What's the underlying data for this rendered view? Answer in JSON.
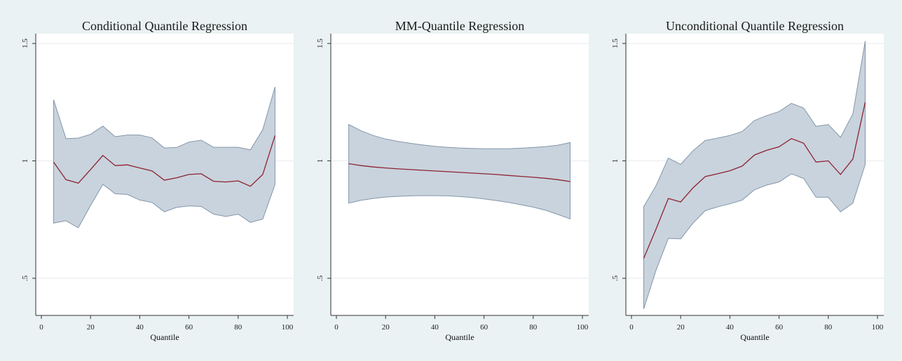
{
  "chart_data": [
    {
      "type": "line",
      "title": "Conditional Quantile Regression",
      "xlabel": "Quantile",
      "ylabel": "",
      "xlim": [
        0,
        100
      ],
      "ylim": [
        0.35,
        1.5
      ],
      "xticks": [
        0,
        20,
        40,
        60,
        80,
        100
      ],
      "xtick_labels": [
        "0",
        "20",
        "40",
        "60",
        "80",
        "100"
      ],
      "yticks": [
        0.5,
        1,
        1.5
      ],
      "ytick_labels": [
        ".5",
        "1",
        "1.5"
      ],
      "grid": true,
      "x": [
        5,
        10,
        15,
        20,
        25,
        30,
        35,
        40,
        45,
        50,
        55,
        60,
        65,
        70,
        75,
        80,
        85,
        90,
        95
      ],
      "series": [
        {
          "role": "estimate",
          "values": [
            0.995,
            0.92,
            0.905,
            0.963,
            1.023,
            0.98,
            0.983,
            0.97,
            0.957,
            0.918,
            0.928,
            0.942,
            0.945,
            0.913,
            0.91,
            0.915,
            0.892,
            0.942,
            1.108
          ]
        },
        {
          "role": "upper",
          "values": [
            1.26,
            1.095,
            1.097,
            1.113,
            1.148,
            1.103,
            1.11,
            1.11,
            1.098,
            1.055,
            1.057,
            1.08,
            1.088,
            1.058,
            1.058,
            1.058,
            1.047,
            1.133,
            1.315
          ]
        },
        {
          "role": "lower",
          "values": [
            0.735,
            0.745,
            0.715,
            0.81,
            0.9,
            0.86,
            0.857,
            0.833,
            0.823,
            0.783,
            0.802,
            0.808,
            0.806,
            0.773,
            0.763,
            0.773,
            0.738,
            0.752,
            0.9
          ]
        }
      ],
      "colors": {
        "band_fill": "#c9d3dd",
        "band_line": "#8396aa",
        "line": "#8c2332"
      }
    },
    {
      "type": "line",
      "title": "MM-Quantile Regression",
      "xlabel": "Quantile",
      "ylabel": "",
      "xlim": [
        0,
        100
      ],
      "ylim": [
        0.35,
        1.5
      ],
      "xticks": [
        0,
        20,
        40,
        60,
        80,
        100
      ],
      "xtick_labels": [
        "0",
        "20",
        "40",
        "60",
        "80",
        "100"
      ],
      "yticks": [
        0.5,
        1,
        1.5
      ],
      "ytick_labels": [
        ".5",
        "1",
        "1.5"
      ],
      "grid": true,
      "x": [
        5,
        10,
        15,
        20,
        25,
        30,
        35,
        40,
        45,
        50,
        55,
        60,
        65,
        70,
        75,
        80,
        85,
        90,
        95
      ],
      "series": [
        {
          "role": "estimate",
          "values": [
            0.988,
            0.98,
            0.974,
            0.97,
            0.966,
            0.963,
            0.96,
            0.957,
            0.954,
            0.951,
            0.948,
            0.945,
            0.942,
            0.938,
            0.934,
            0.93,
            0.926,
            0.92,
            0.912
          ]
        },
        {
          "role": "upper",
          "values": [
            1.155,
            1.128,
            1.108,
            1.093,
            1.083,
            1.075,
            1.068,
            1.062,
            1.058,
            1.055,
            1.053,
            1.052,
            1.052,
            1.052,
            1.054,
            1.057,
            1.061,
            1.067,
            1.078
          ]
        },
        {
          "role": "lower",
          "values": [
            0.82,
            0.832,
            0.84,
            0.846,
            0.849,
            0.851,
            0.852,
            0.852,
            0.851,
            0.848,
            0.844,
            0.838,
            0.831,
            0.823,
            0.813,
            0.803,
            0.79,
            0.772,
            0.753
          ]
        }
      ],
      "colors": {
        "band_fill": "#c9d3dd",
        "band_line": "#8396aa",
        "line": "#8c2332"
      }
    },
    {
      "type": "line",
      "title": "Unconditional Quantile Regression",
      "xlabel": "Quantile",
      "ylabel": "",
      "xlim": [
        0,
        100
      ],
      "ylim": [
        0.35,
        1.5
      ],
      "xticks": [
        0,
        20,
        40,
        60,
        80,
        100
      ],
      "xtick_labels": [
        "0",
        "20",
        "40",
        "60",
        "80",
        "100"
      ],
      "yticks": [
        0.5,
        1,
        1.5
      ],
      "ytick_labels": [
        ".5",
        "1",
        "1.5"
      ],
      "grid": true,
      "x": [
        5,
        10,
        15,
        20,
        25,
        30,
        35,
        40,
        45,
        50,
        55,
        60,
        65,
        70,
        75,
        80,
        85,
        90,
        95
      ],
      "series": [
        {
          "role": "estimate",
          "values": [
            0.585,
            0.71,
            0.84,
            0.825,
            0.885,
            0.933,
            0.945,
            0.958,
            0.978,
            1.025,
            1.045,
            1.06,
            1.095,
            1.075,
            0.995,
            1.0,
            0.942,
            1.008,
            1.25
          ]
        },
        {
          "role": "upper",
          "values": [
            0.805,
            0.895,
            1.012,
            0.985,
            1.043,
            1.087,
            1.097,
            1.108,
            1.125,
            1.172,
            1.193,
            1.21,
            1.245,
            1.225,
            1.147,
            1.155,
            1.1,
            1.2,
            1.51
          ]
        },
        {
          "role": "lower",
          "values": [
            0.37,
            0.535,
            0.67,
            0.668,
            0.735,
            0.788,
            0.804,
            0.817,
            0.833,
            0.877,
            0.897,
            0.91,
            0.945,
            0.925,
            0.845,
            0.845,
            0.783,
            0.82,
            0.985
          ]
        }
      ],
      "colors": {
        "band_fill": "#c9d3dd",
        "band_line": "#8396aa",
        "line": "#8c2332"
      }
    }
  ]
}
